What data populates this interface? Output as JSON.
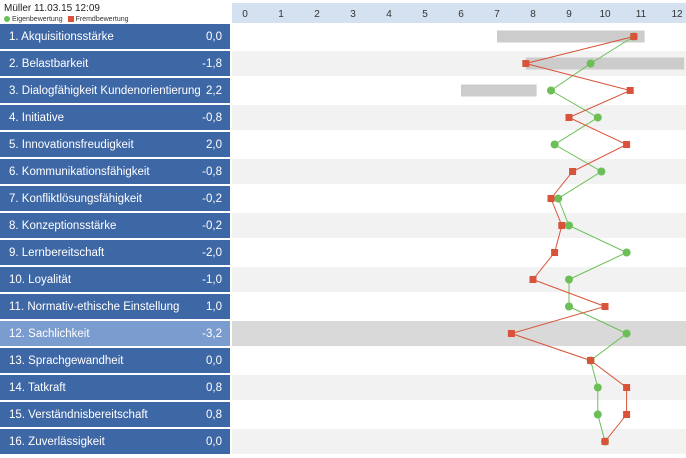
{
  "header": {
    "title": "Müller 11.03.15 12:09",
    "legend_self": "Eigenbewertung",
    "legend_other": "Fremdbewertung"
  },
  "colors": {
    "self": "#6cbf57",
    "other": "#d9533a",
    "label_bg": "#3e67a6",
    "label_highlight_bg": "#7a9ccf",
    "range_bar": "#cccccc",
    "axis_header": "#d3e1f1"
  },
  "rows": [
    {
      "label": "1. Akquisitionsstärke",
      "value": "0,0"
    },
    {
      "label": "2. Belastbarkeit",
      "value": "-1,8"
    },
    {
      "label": "3. Dialogfähigkeit Kundenorientierung",
      "value": "2,2"
    },
    {
      "label": "4. Initiative",
      "value": "-0,8"
    },
    {
      "label": "5. Innovationsfreudigkeit",
      "value": "2,0"
    },
    {
      "label": "6. Kommunikationsfähigkeit",
      "value": "-0,8"
    },
    {
      "label": "7. Konfliktlösungsfähigkeit",
      "value": "-0,2"
    },
    {
      "label": "8. Konzeptionsstärke",
      "value": "-0,2"
    },
    {
      "label": "9. Lernbereitschaft",
      "value": "-2,0"
    },
    {
      "label": "10. Loyalität",
      "value": "-1,0"
    },
    {
      "label": "11. Normativ-ethische Einstellung",
      "value": "1,0"
    },
    {
      "label": "12. Sachlichkeit",
      "value": "-3,2",
      "highlight": true
    },
    {
      "label": "13. Sprachgewandheit",
      "value": "0,0"
    },
    {
      "label": "14. Tatkraft",
      "value": "0,8"
    },
    {
      "label": "15. Verständnisbereitschaft",
      "value": "0,8"
    },
    {
      "label": "16. Zuverlässigkeit",
      "value": "0,0"
    }
  ],
  "chart_data": {
    "type": "line",
    "orientation": "horizontal",
    "xlim": [
      0,
      12
    ],
    "xticks": [
      "0",
      "1",
      "2",
      "3",
      "4",
      "5",
      "6",
      "7",
      "8",
      "9",
      "10",
      "11",
      "12"
    ],
    "categories": [
      "1. Akquisitionsstärke",
      "2. Belastbarkeit",
      "3. Dialogfähigkeit Kundenorientierung",
      "4. Initiative",
      "5. Innovationsfreudigkeit",
      "6. Kommunikationsfähigkeit",
      "7. Konfliktlösungsfähigkeit",
      "8. Konzeptionsstärke",
      "9. Lernbereitschaft",
      "10. Loyalität",
      "11. Normativ-ethische Einstellung",
      "12. Sachlichkeit",
      "13. Sprachgewandheit",
      "14. Tatkraft",
      "15. Verständnisbereitschaft",
      "16. Zuverlässigkeit"
    ],
    "series": [
      {
        "name": "Eigenbewertung",
        "marker": "circle",
        "values": [
          10.8,
          9.6,
          8.5,
          9.8,
          8.6,
          9.9,
          8.7,
          9.0,
          10.6,
          9.0,
          9.0,
          10.6,
          9.6,
          9.8,
          9.8,
          10.0
        ]
      },
      {
        "name": "Fremdbewertung",
        "marker": "square",
        "values": [
          10.8,
          7.8,
          10.7,
          9.0,
          10.6,
          9.1,
          8.5,
          8.8,
          8.6,
          8.0,
          10.0,
          7.4,
          9.6,
          10.6,
          10.6,
          10.0
        ]
      }
    ],
    "ranges": [
      {
        "row": 0,
        "from": 7.0,
        "to": 11.1
      },
      {
        "row": 1,
        "from": 7.8,
        "to": 12.2
      },
      {
        "row": 2,
        "from": 6.0,
        "to": 8.1
      }
    ],
    "highlight_row": 11,
    "grid": "alternating-rows"
  }
}
